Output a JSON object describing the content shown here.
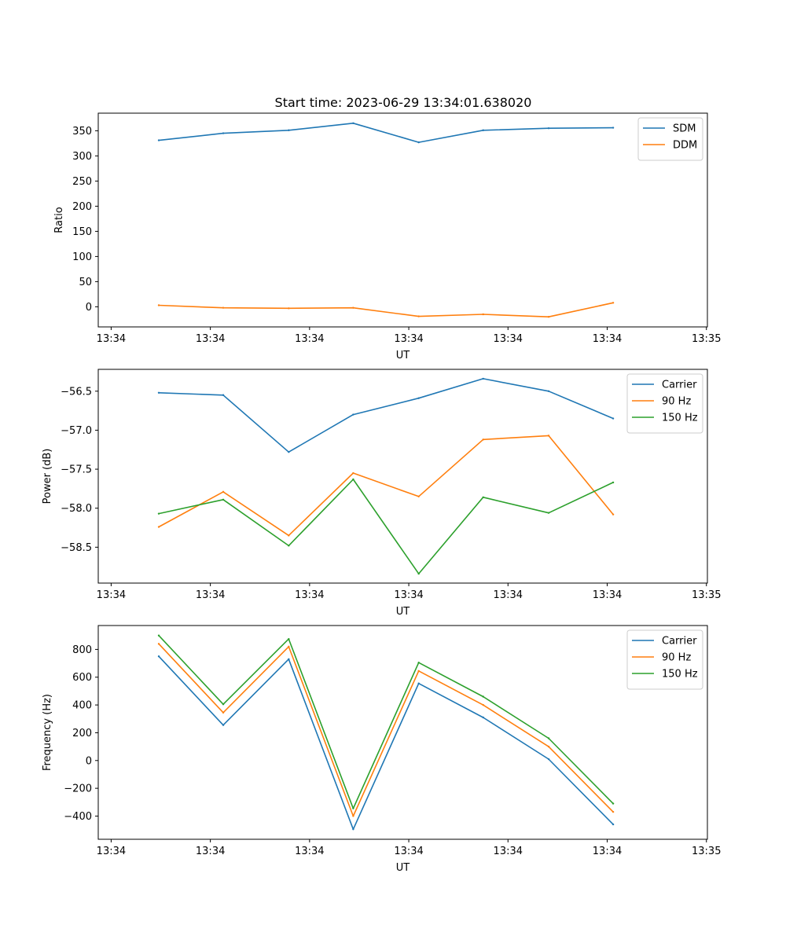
{
  "title": "Start time: 2023-06-29 13:34:01.638020",
  "colors": {
    "blue": "#1f77b4",
    "orange": "#ff7f0e",
    "green": "#2ca02c"
  },
  "chart_data": [
    {
      "type": "line",
      "title": "Start time: 2023-06-29 13:34:01.638020",
      "xlabel": "UT",
      "ylabel": "Ratio",
      "xticks": [
        0,
        1,
        2,
        3,
        4,
        5,
        6
      ],
      "xtick_labels": [
        "13:34",
        "13:34",
        "13:34",
        "13:34",
        "13:34",
        "13:34",
        "13:35"
      ],
      "xlim": [
        -0.13,
        6.01
      ],
      "yticks": [
        0,
        50,
        100,
        150,
        200,
        250,
        300,
        350
      ],
      "ylim": [
        -40,
        385
      ],
      "legend": "top-right",
      "x": [
        0.48,
        1.13,
        1.79,
        2.44,
        3.1,
        3.75,
        4.41,
        5.06
      ],
      "series": [
        {
          "name": "SDM",
          "color": "#1f77b4",
          "values": [
            331,
            345,
            351,
            365,
            327,
            351,
            355,
            356
          ]
        },
        {
          "name": "DDM",
          "color": "#ff7f0e",
          "values": [
            3,
            -2,
            -3,
            -2,
            -19,
            -15,
            -20,
            8
          ]
        }
      ]
    },
    {
      "type": "line",
      "xlabel": "UT",
      "ylabel": "Power (dB)",
      "xticks": [
        0,
        1,
        2,
        3,
        4,
        5,
        6
      ],
      "xtick_labels": [
        "13:34",
        "13:34",
        "13:34",
        "13:34",
        "13:34",
        "13:34",
        "13:35"
      ],
      "xlim": [
        -0.13,
        6.01
      ],
      "yticks": [
        -58.5,
        -58.0,
        -57.5,
        -57.0,
        -56.5
      ],
      "ytick_labels": [
        "−58.5",
        "−58.0",
        "−57.5",
        "−57.0",
        "−56.5"
      ],
      "ylim": [
        -58.96,
        -56.22
      ],
      "legend": "top-right",
      "x": [
        0.48,
        1.13,
        1.79,
        2.44,
        3.1,
        3.75,
        4.41,
        5.06
      ],
      "series": [
        {
          "name": "Carrier",
          "color": "#1f77b4",
          "values": [
            -56.52,
            -56.55,
            -57.28,
            -56.8,
            -56.59,
            -56.34,
            -56.5,
            -56.85
          ]
        },
        {
          "name": "90 Hz",
          "color": "#ff7f0e",
          "values": [
            -58.24,
            -57.79,
            -58.35,
            -57.55,
            -57.85,
            -57.12,
            -57.07,
            -58.08
          ]
        },
        {
          "name": "150 Hz",
          "color": "#2ca02c",
          "values": [
            -58.07,
            -57.89,
            -58.48,
            -57.63,
            -58.84,
            -57.86,
            -58.06,
            -57.67
          ]
        }
      ]
    },
    {
      "type": "line",
      "xlabel": "UT",
      "ylabel": "Frequency (Hz)",
      "xticks": [
        0,
        1,
        2,
        3,
        4,
        5,
        6
      ],
      "xtick_labels": [
        "13:34",
        "13:34",
        "13:34",
        "13:34",
        "13:34",
        "13:34",
        "13:35"
      ],
      "xlim": [
        -0.13,
        6.01
      ],
      "yticks": [
        -400,
        -200,
        0,
        200,
        400,
        600,
        800
      ],
      "ytick_labels": [
        "−400",
        "−200",
        "0",
        "200",
        "400",
        "600",
        "800"
      ],
      "ylim": [
        -567,
        972
      ],
      "legend": "top-right",
      "x": [
        0.48,
        1.13,
        1.79,
        2.44,
        3.1,
        3.75,
        4.41,
        5.06
      ],
      "series": [
        {
          "name": "Carrier",
          "color": "#1f77b4",
          "values": [
            750,
            255,
            730,
            -495,
            555,
            310,
            10,
            -460
          ]
        },
        {
          "name": "90 Hz",
          "color": "#ff7f0e",
          "values": [
            840,
            345,
            820,
            -400,
            645,
            400,
            100,
            -370
          ]
        },
        {
          "name": "150 Hz",
          "color": "#2ca02c",
          "values": [
            900,
            405,
            875,
            -345,
            705,
            460,
            160,
            -310
          ]
        }
      ]
    }
  ]
}
